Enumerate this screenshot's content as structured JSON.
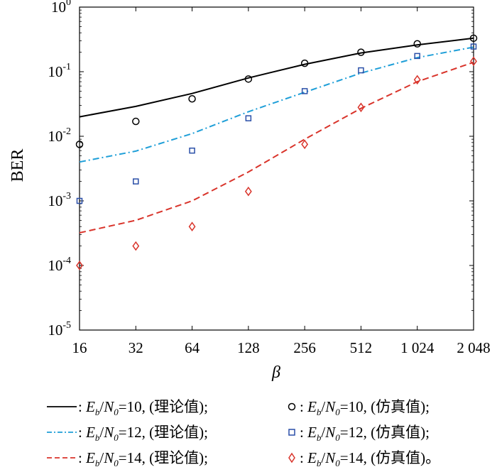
{
  "chart_data": {
    "type": "line",
    "x_scale": "log2",
    "y_scale": "log10",
    "x_ticks": [
      16,
      32,
      64,
      128,
      256,
      512,
      1024,
      2048
    ],
    "x_tick_labels": [
      "16",
      "32",
      "64",
      "128",
      "256",
      "512",
      "1 024",
      "2 048"
    ],
    "y_tick_exponents": [
      0,
      -1,
      -2,
      -3,
      -4,
      -5
    ],
    "y_tick_base": "10",
    "xlim": [
      16,
      2048
    ],
    "ylim": [
      1e-05,
      1
    ],
    "xlabel": "β",
    "ylabel": "BER",
    "grid": false,
    "legend_position": "below",
    "series": [
      {
        "name": ": Eb/N0=10, (理论值);",
        "style": "solid",
        "color": "#000000",
        "marker": "none",
        "x": [
          16,
          32,
          64,
          128,
          256,
          512,
          1024,
          2048
        ],
        "y": [
          0.02,
          0.029,
          0.046,
          0.08,
          0.13,
          0.195,
          0.26,
          0.33
        ]
      },
      {
        "name": ": Eb/N0=12, (理论值);",
        "style": "dashdot",
        "color": "#1f9fd8",
        "marker": "none",
        "x": [
          16,
          32,
          64,
          128,
          256,
          512,
          1024,
          2048
        ],
        "y": [
          0.004,
          0.0059,
          0.011,
          0.024,
          0.048,
          0.095,
          0.165,
          0.24
        ]
      },
      {
        "name": ": Eb/N0=14, (理论值);",
        "style": "dashed",
        "color": "#d9342b",
        "marker": "none",
        "x": [
          16,
          32,
          64,
          128,
          256,
          512,
          1024,
          2048
        ],
        "y": [
          0.00032,
          0.0005,
          0.001,
          0.0028,
          0.009,
          0.027,
          0.07,
          0.14
        ]
      },
      {
        "name": ": Eb/N0=10, (仿真值);",
        "style": "none",
        "color": "#000000",
        "marker": "circle",
        "x": [
          16,
          32,
          64,
          128,
          256,
          512,
          1024,
          2048
        ],
        "y": [
          0.0075,
          0.017,
          0.038,
          0.077,
          0.135,
          0.2,
          0.27,
          0.33
        ]
      },
      {
        "name": ": Eb/N0=12, (仿真值);",
        "style": "none",
        "color": "#2a4fa8",
        "marker": "square",
        "x": [
          16,
          32,
          64,
          128,
          256,
          512,
          1024,
          2048
        ],
        "y": [
          0.001,
          0.002,
          0.006,
          0.019,
          0.05,
          0.105,
          0.175,
          0.245
        ]
      },
      {
        "name": ": Eb/N0=14, (仿真值)。",
        "style": "none",
        "color": "#d9342b",
        "marker": "diamond",
        "x": [
          16,
          32,
          64,
          128,
          256,
          512,
          1024,
          2048
        ],
        "y": [
          0.0001,
          0.0002,
          0.0004,
          0.0014,
          0.0075,
          0.028,
          0.075,
          0.145
        ]
      }
    ]
  },
  "legend": {
    "rows": [
      {
        "left": {
          "prefix": ": ",
          "E": "E",
          "Esub": "b",
          "slash": "/",
          "N": "N",
          "Nsub": "0",
          "eq": "=10, ",
          "tail": "(理论值);"
        },
        "right": {
          "prefix": ": ",
          "E": "E",
          "Esub": "b",
          "slash": "/",
          "N": "N",
          "Nsub": "0",
          "eq": "=10, ",
          "tail": "(仿真值);"
        }
      },
      {
        "left": {
          "prefix": ": ",
          "E": "E",
          "Esub": "b",
          "slash": "/",
          "N": "N",
          "Nsub": "0",
          "eq": "=12, ",
          "tail": "(理论值);"
        },
        "right": {
          "prefix": ": ",
          "E": "E",
          "Esub": "b",
          "slash": "/",
          "N": "N",
          "Nsub": "0",
          "eq": "=12, ",
          "tail": "(仿真值);"
        }
      },
      {
        "left": {
          "prefix": ": ",
          "E": "E",
          "Esub": "b",
          "slash": "/",
          "N": "N",
          "Nsub": "0",
          "eq": "=14, ",
          "tail": "(理论值);"
        },
        "right": {
          "prefix": ": ",
          "E": "E",
          "Esub": "b",
          "slash": "/",
          "N": "N",
          "Nsub": "0",
          "eq": "=14, ",
          "tail": "(仿真值)。"
        }
      }
    ]
  }
}
